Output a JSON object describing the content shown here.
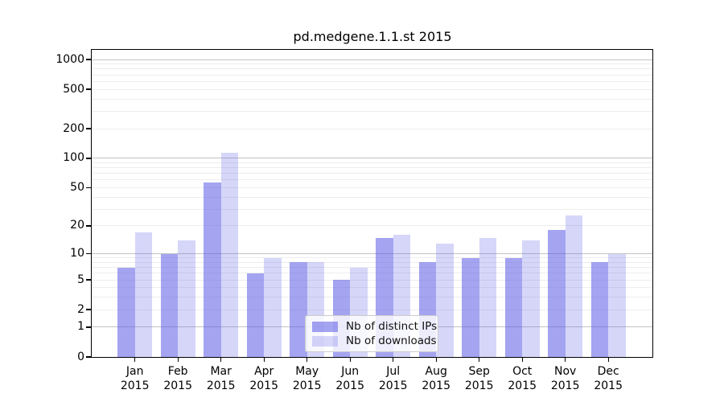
{
  "chart_data": {
    "type": "bar",
    "title": "pd.medgene.1.1.st 2015",
    "categories": [
      "Jan",
      "Feb",
      "Mar",
      "Apr",
      "May",
      "Jun",
      "Jul",
      "Aug",
      "Sep",
      "Oct",
      "Nov",
      "Dec"
    ],
    "xtick_year": "2015",
    "series": [
      {
        "key": "ips",
        "name": "Nb of distinct IPs",
        "color": "#5a5ae6",
        "alpha": 0.55,
        "values": [
          7,
          10,
          57,
          6,
          8,
          5,
          15,
          8,
          9,
          9,
          18,
          8
        ]
      },
      {
        "key": "downloads",
        "name": "Nb of downloads",
        "color": "#5a5ae6",
        "alpha": 0.25,
        "values": [
          17,
          14,
          113,
          9,
          8,
          7,
          16,
          13,
          15,
          14,
          26,
          10
        ]
      }
    ],
    "yscale": "log1p",
    "ylim": [
      0,
      1250
    ],
    "yticks": [
      0,
      1,
      2,
      5,
      10,
      20,
      50,
      100,
      200,
      500,
      1000
    ],
    "y_gridlines": {
      "major": [
        1,
        10,
        100,
        1000
      ],
      "minor": [
        2,
        3,
        4,
        5,
        6,
        7,
        8,
        9,
        20,
        30,
        40,
        50,
        60,
        70,
        80,
        90,
        200,
        300,
        400,
        500,
        600,
        700,
        800,
        900
      ]
    },
    "grid": true,
    "legend_position": "lower center",
    "xlabel": "",
    "ylabel": ""
  },
  "colors": {
    "background": "#ffffff",
    "ips_bar_on_white": "#a4a4f1",
    "downloads_bar_on_white": "#d6d6f9",
    "gridline_major": "#c3c3c3",
    "gridline_minor": "#ededed",
    "spine": "#000000"
  }
}
